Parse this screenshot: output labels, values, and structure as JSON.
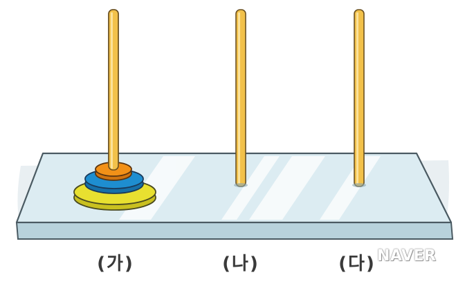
{
  "pegs": [
    {
      "label": "(가)",
      "disks": 3
    },
    {
      "label": "(나)",
      "disks": 0
    },
    {
      "label": "(다)",
      "disks": 0
    }
  ],
  "disks": [
    {
      "size": "large",
      "color": "#e8e030"
    },
    {
      "size": "medium",
      "color": "#1e8ed0"
    },
    {
      "size": "small",
      "color": "#f29118"
    }
  ],
  "colors": {
    "board_top": "#dcecf2",
    "board_edge": "#b8d2dc",
    "peg": "#f2c14a",
    "peg_outline": "#6a5020"
  },
  "watermark": "NAVER"
}
